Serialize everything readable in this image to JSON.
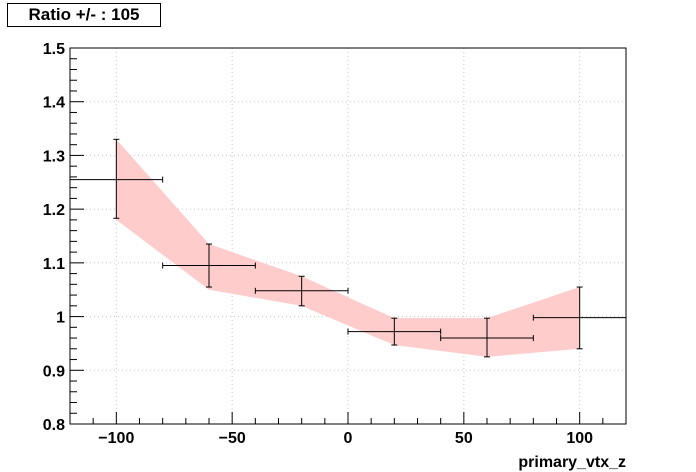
{
  "chart_data": {
    "type": "scatter",
    "title": "Ratio +/- : 105",
    "xlabel": "primary_vtx_z",
    "ylabel": "",
    "xlim": [
      -120,
      120
    ],
    "ylim": [
      0.8,
      1.5
    ],
    "grid": true,
    "x_ticks": [
      -100,
      -50,
      0,
      50,
      100
    ],
    "x_tick_labels": [
      "−100",
      "−50",
      "0",
      "50",
      "100"
    ],
    "y_ticks": [
      0.8,
      0.9,
      1.0,
      1.1,
      1.2,
      1.3,
      1.4,
      1.5
    ],
    "y_tick_labels": [
      "0.8",
      "0.9",
      "1",
      "1.1",
      "1.2",
      "1.3",
      "1.4",
      "1.5"
    ],
    "band_color": "#ffcccc",
    "marker_color": "#000000",
    "points": [
      {
        "x": -100,
        "xlo": -120,
        "xhi": -80,
        "y": 1.255,
        "ylo": 1.183,
        "yhi": 1.33
      },
      {
        "x": -60,
        "xlo": -80,
        "xhi": -40,
        "y": 1.095,
        "ylo": 1.055,
        "yhi": 1.135
      },
      {
        "x": -20,
        "xlo": -40,
        "xhi": 0,
        "y": 1.048,
        "ylo": 1.02,
        "yhi": 1.075
      },
      {
        "x": 20,
        "xlo": 0,
        "xhi": 40,
        "y": 0.972,
        "ylo": 0.947,
        "yhi": 0.997
      },
      {
        "x": 60,
        "xlo": 40,
        "xhi": 80,
        "y": 0.96,
        "ylo": 0.925,
        "yhi": 0.997
      },
      {
        "x": 100,
        "xlo": 80,
        "xhi": 120,
        "y": 0.998,
        "ylo": 0.94,
        "yhi": 1.055
      }
    ],
    "band": [
      {
        "x": -100,
        "lo": 1.18,
        "hi": 1.33
      },
      {
        "x": -60,
        "lo": 1.05,
        "hi": 1.135
      },
      {
        "x": -20,
        "lo": 1.02,
        "hi": 1.075
      },
      {
        "x": 20,
        "lo": 0.947,
        "hi": 0.997
      },
      {
        "x": 60,
        "lo": 0.925,
        "hi": 0.997
      },
      {
        "x": 100,
        "lo": 0.94,
        "hi": 1.055
      }
    ]
  }
}
